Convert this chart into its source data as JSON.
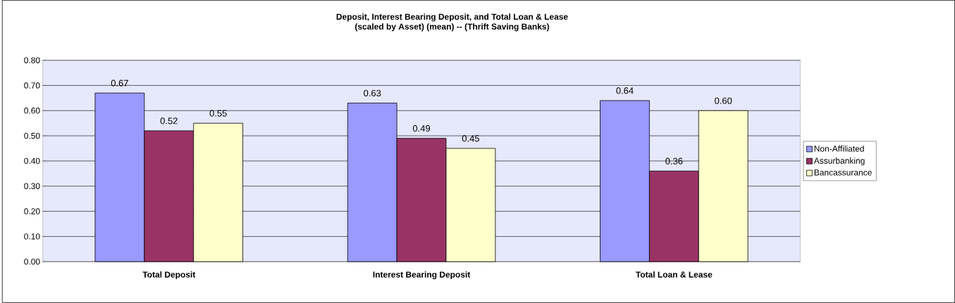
{
  "chart_data": {
    "type": "bar",
    "title": "Deposit, Interest Bearing Deposit, and Total Loan & Lease",
    "subtitle": "(scaled by Asset)  (mean) -- (Thrift Saving Banks)",
    "categories": [
      "Total Deposit",
      "Interest Bearing Deposit",
      "Total Loan & Lease"
    ],
    "series": [
      {
        "name": "Non-Affiliated",
        "color": "#9999ff",
        "values": [
          0.67,
          0.63,
          0.64
        ],
        "value_labels": [
          "0.67",
          "0.63",
          "0.64"
        ]
      },
      {
        "name": "Assurbanking",
        "color": "#993366",
        "values": [
          0.52,
          0.49,
          0.36
        ],
        "value_labels": [
          "0.52",
          "0.49",
          "0.36"
        ]
      },
      {
        "name": "Bancassurance",
        "color": "#ffffcc",
        "values": [
          0.55,
          0.45,
          0.6
        ],
        "value_labels": [
          "0.55",
          "0.45",
          "0.60"
        ]
      }
    ],
    "ylim": [
      0,
      0.8
    ],
    "yticks": [
      {
        "value": 0,
        "label": "0.00"
      },
      {
        "value": 0.1,
        "label": "0.10"
      },
      {
        "value": 0.2,
        "label": "0.20"
      },
      {
        "value": 0.3,
        "label": "0.30"
      },
      {
        "value": 0.4,
        "label": "0.40"
      },
      {
        "value": 0.5,
        "label": "0.50"
      },
      {
        "value": 0.6,
        "label": "0.60"
      },
      {
        "value": 0.7,
        "label": "0.70"
      },
      {
        "value": 0.8,
        "label": "0.80"
      }
    ],
    "grid": "y",
    "legend": "right"
  }
}
